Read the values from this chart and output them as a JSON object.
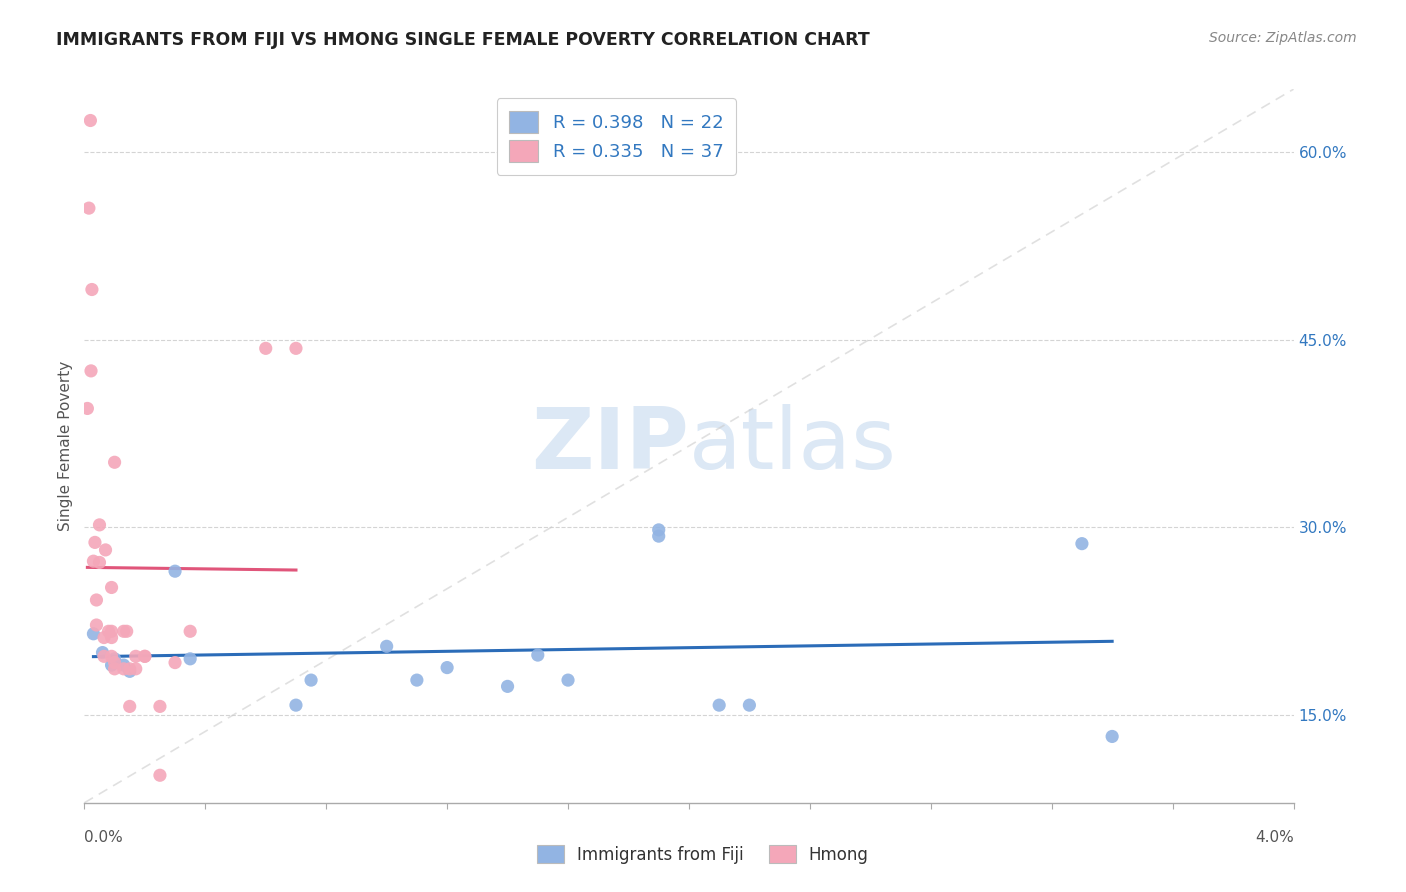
{
  "title": "IMMIGRANTS FROM FIJI VS HMONG SINGLE FEMALE POVERTY CORRELATION CHART",
  "source": "Source: ZipAtlas.com",
  "ylabel": "Single Female Poverty",
  "xlim": [
    0.0,
    0.04
  ],
  "ylim": [
    0.08,
    0.65
  ],
  "yticks": [
    0.15,
    0.3,
    0.45,
    0.6
  ],
  "ytick_labels": [
    "15.0%",
    "30.0%",
    "45.0%",
    "60.0%"
  ],
  "fiji_color": "#92b4e3",
  "hmong_color": "#f4a7b9",
  "fiji_line_color": "#2b6cb8",
  "hmong_line_color": "#e0557a",
  "diag_line_color": "#cccccc",
  "watermark_color": "#dce8f5",
  "legend_fiji_R": "R = 0.398",
  "legend_fiji_N": "N = 22",
  "legend_hmong_R": "R = 0.335",
  "legend_hmong_N": "N = 37",
  "fiji_x": [
    0.0003,
    0.0006,
    0.0009,
    0.001,
    0.0013,
    0.0015,
    0.003,
    0.0035,
    0.007,
    0.0075,
    0.01,
    0.011,
    0.012,
    0.014,
    0.015,
    0.016,
    0.019,
    0.019,
    0.021,
    0.022,
    0.033,
    0.034
  ],
  "fiji_y": [
    0.215,
    0.2,
    0.19,
    0.195,
    0.19,
    0.185,
    0.265,
    0.195,
    0.158,
    0.178,
    0.205,
    0.178,
    0.188,
    0.173,
    0.198,
    0.178,
    0.298,
    0.293,
    0.158,
    0.158,
    0.287,
    0.133
  ],
  "hmong_x": [
    0.0001,
    0.00015,
    0.0002,
    0.00022,
    0.00025,
    0.0003,
    0.00035,
    0.0004,
    0.0004,
    0.0005,
    0.0005,
    0.00065,
    0.00065,
    0.0007,
    0.0008,
    0.0009,
    0.0009,
    0.0009,
    0.0009,
    0.001,
    0.001,
    0.001,
    0.0013,
    0.0013,
    0.0014,
    0.0015,
    0.0015,
    0.0017,
    0.0017,
    0.002,
    0.002,
    0.0025,
    0.0025,
    0.003,
    0.0035,
    0.006,
    0.007
  ],
  "hmong_y": [
    0.395,
    0.555,
    0.625,
    0.425,
    0.49,
    0.273,
    0.288,
    0.242,
    0.222,
    0.272,
    0.302,
    0.212,
    0.197,
    0.282,
    0.217,
    0.252,
    0.217,
    0.212,
    0.197,
    0.192,
    0.187,
    0.352,
    0.217,
    0.187,
    0.217,
    0.187,
    0.157,
    0.187,
    0.197,
    0.197,
    0.197,
    0.157,
    0.102,
    0.192,
    0.217,
    0.443,
    0.443
  ],
  "background_color": "#ffffff",
  "grid_color": "#d0d0d0"
}
